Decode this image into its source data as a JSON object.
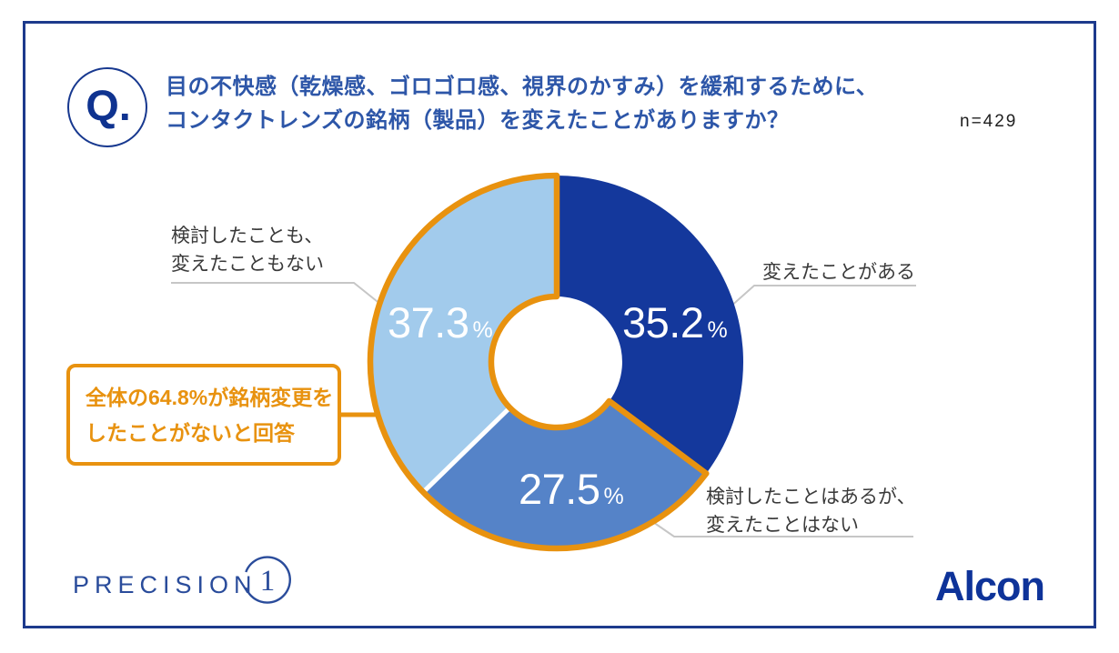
{
  "question": {
    "badge": "Q.",
    "line1": "目の不快感（乾燥感、ゴロゴロ感、視界のかすみ）を緩和するために、",
    "line2": "コンタクトレンズの銘柄（製品）を変えたことがありますか？",
    "sample_size": "n=429"
  },
  "chart_data": {
    "type": "pie",
    "donut": true,
    "start_angle_deg": 0,
    "direction": "clockwise",
    "title": "目の不快感（乾燥感、ゴロゴロ感、視界のかすみ）を緩和するために、コンタクトレンズの銘柄（製品）を変えたことがありますか？",
    "sample_size": 429,
    "slices": [
      {
        "label": "変えたことがある",
        "value": 35.2,
        "display": "35.2",
        "unit": "%",
        "color": "#14389c"
      },
      {
        "label": "検討したことはあるが、変えたことはない",
        "value": 27.5,
        "display": "27.5",
        "unit": "%",
        "color": "#5583c8"
      },
      {
        "label": "検討したことも、変えたこともない",
        "value": 37.3,
        "display": "37.3",
        "unit": "%",
        "color": "#a2cbec"
      }
    ],
    "separator_before_slice": 2,
    "labels": {
      "right": "変えたことがある",
      "bottom_right_line1": "検討したことはあるが、",
      "bottom_right_line2": "変えたことはない",
      "top_left_line1": "検討したことも、",
      "top_left_line2": "変えたこともない"
    },
    "annotation": {
      "line1": "全体の64.8%が銘柄変更を",
      "line2": "したことがないと回答",
      "highlight_total": 64.8,
      "highlighted_slices": [
        1,
        2
      ],
      "highlight_color": "#e8920f"
    }
  },
  "footer": {
    "brand_left": "PRECISION",
    "brand_left_numeral": "1",
    "brand_right": "Alcon"
  },
  "colors": {
    "frame_border": "#1d3a8c",
    "question_text": "#2d56a8",
    "highlight_orange": "#e8920f",
    "label_gray": "#3a3a3a",
    "leader_line": "#c6c6c6"
  }
}
